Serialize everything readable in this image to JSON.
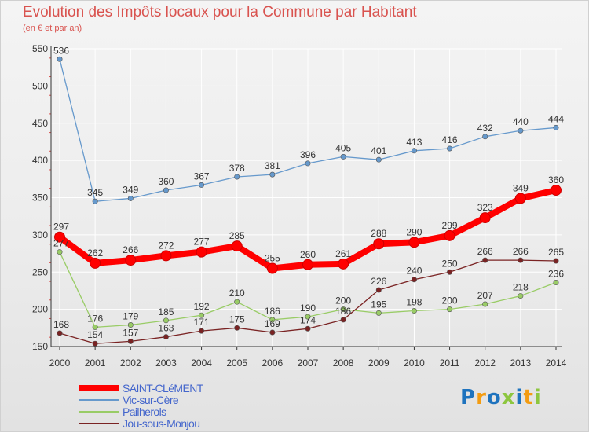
{
  "header": {
    "title": "Evolution des Impôts locaux pour la Commune par Habitant",
    "subtitle": "(en € et par an)"
  },
  "logo": {
    "text": "Proxiti",
    "letters": [
      {
        "char": "P",
        "color": "#1e73be"
      },
      {
        "char": "r",
        "color": "#f39c12"
      },
      {
        "char": "o",
        "color": "#1e73be"
      },
      {
        "char": "x",
        "color": "#8dc63f"
      },
      {
        "char": "i",
        "color": "#1e73be"
      },
      {
        "char": "t",
        "color": "#f39c12"
      },
      {
        "char": "i",
        "color": "#8dc63f"
      }
    ]
  },
  "colors": {
    "title": "#d9534f",
    "axis": "#333333",
    "grid": "#ffffff",
    "tick_mark": "#d9534f"
  },
  "chart_data": {
    "type": "line",
    "title": "Evolution des Impôts locaux pour la Commune par Habitant",
    "subtitle": "(en € et par an)",
    "xlabel": "",
    "ylabel": "",
    "categories": [
      "2000",
      "2001",
      "2002",
      "2003",
      "2004",
      "2005",
      "2006",
      "2007",
      "2008",
      "2009",
      "2010",
      "2011",
      "2012",
      "2013",
      "2014"
    ],
    "ylim": [
      150,
      550
    ],
    "yticks": [
      150,
      200,
      250,
      300,
      350,
      400,
      450,
      500,
      550
    ],
    "grid": true,
    "legend_position": "bottom-left",
    "series": [
      {
        "name": "SAINT-CLéMENT",
        "color": "#ff0000",
        "values": [
          297,
          262,
          266,
          272,
          277,
          285,
          255,
          260,
          261,
          288,
          290,
          299,
          323,
          349,
          360
        ],
        "emphasis": true
      },
      {
        "name": "Vic-sur-Cère",
        "color": "#6699cc",
        "values": [
          536,
          345,
          349,
          360,
          367,
          378,
          381,
          396,
          405,
          401,
          413,
          416,
          432,
          440,
          444
        ],
        "emphasis": false
      },
      {
        "name": "Pailherols",
        "color": "#99cc66",
        "values": [
          277,
          176,
          179,
          185,
          192,
          210,
          186,
          190,
          200,
          195,
          198,
          200,
          207,
          218,
          236
        ],
        "emphasis": false
      },
      {
        "name": "Jou-sous-Monjou",
        "color": "#7a2323",
        "values": [
          168,
          154,
          157,
          163,
          171,
          175,
          169,
          174,
          186,
          226,
          240,
          250,
          266,
          266,
          265
        ],
        "emphasis": false
      }
    ]
  }
}
